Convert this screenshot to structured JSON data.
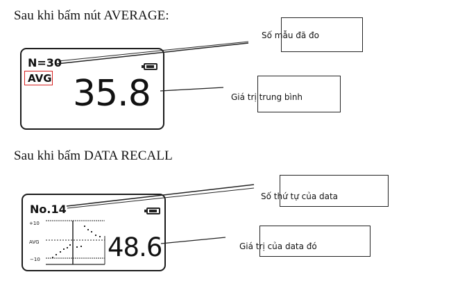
{
  "section_average": {
    "heading": "Sau khi bấm nút AVERAGE:",
    "display": {
      "count_label": "N=30",
      "mode_label": "AVG",
      "value": "35.8",
      "battery_icon": "battery-icon"
    },
    "callouts": {
      "samples": "Số mẫu đã đo",
      "mean": "Giá trị trung bình"
    },
    "highlight_color": "#d61f1f"
  },
  "section_recall": {
    "heading": "Sau khi bấm DATA RECALL",
    "display": {
      "index_label": "No.14",
      "upper_label": "+10",
      "avg_label": "AVG",
      "lower_label": "−10",
      "value": "48.6",
      "battery_icon": "battery-icon"
    },
    "callouts": {
      "index": "Số thứ tự của data",
      "value": "Giá trị của data đó"
    }
  }
}
